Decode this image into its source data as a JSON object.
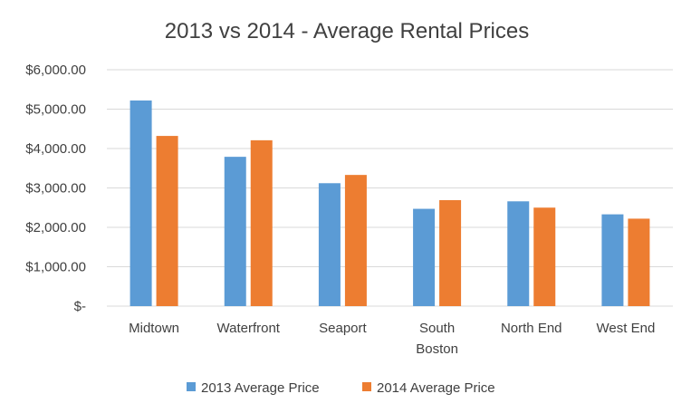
{
  "chart_data": {
    "type": "bar",
    "title": "2013 vs 2014 - Average Rental Prices",
    "xlabel": "",
    "ylabel": "",
    "categories": [
      [
        "Midtown"
      ],
      [
        "Waterfront"
      ],
      [
        "Seaport"
      ],
      [
        "South",
        "Boston"
      ],
      [
        "North End"
      ],
      [
        "West End"
      ]
    ],
    "series": [
      {
        "name": "2013 Average Price",
        "color": "#5b9bd5",
        "values": [
          5220,
          3790,
          3120,
          2470,
          2660,
          2330
        ]
      },
      {
        "name": "2014 Average Price",
        "color": "#ed7d31",
        "values": [
          4320,
          4210,
          3330,
          2690,
          2500,
          2220
        ]
      }
    ],
    "ylim": [
      0,
      6000
    ],
    "yticks": [
      {
        "value": 0,
        "label": "$-"
      },
      {
        "value": 1000,
        "label": "$1,000.00"
      },
      {
        "value": 2000,
        "label": "$2,000.00"
      },
      {
        "value": 3000,
        "label": "$3,000.00"
      },
      {
        "value": 4000,
        "label": "$4,000.00"
      },
      {
        "value": 5000,
        "label": "$5,000.00"
      },
      {
        "value": 6000,
        "label": "$6,000.00"
      }
    ],
    "grid": true,
    "legend": "bottom"
  }
}
